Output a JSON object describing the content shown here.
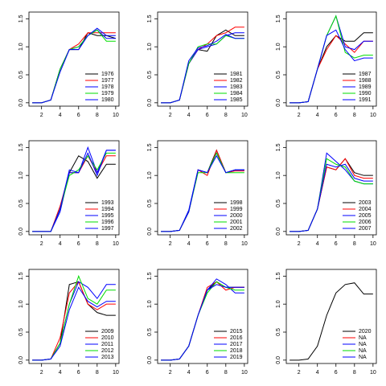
{
  "chart_data": [
    {
      "type": "line",
      "x": [
        1,
        2,
        3,
        4,
        5,
        6,
        7,
        8,
        9,
        10
      ],
      "xlim": [
        0.64,
        10.36
      ],
      "ylim": [
        -0.06,
        1.62
      ],
      "xticks": [
        2,
        4,
        6,
        8,
        10
      ],
      "yticks": [
        {
          "value": 0,
          "label": "0.0"
        },
        0.5,
        {
          "value": 1,
          "label": "1.0"
        },
        1.5
      ],
      "legend": "bottomright",
      "series": [
        {
          "name": "1976",
          "color": "#000000",
          "values": [
            0,
            0,
            0.05,
            0.6,
            0.95,
            0.95,
            1.25,
            1.2,
            1.2,
            1.15
          ]
        },
        {
          "name": "1977",
          "color": "#ff0000",
          "values": [
            0,
            0,
            0.05,
            0.6,
            0.95,
            1.05,
            1.25,
            1.25,
            1.25,
            1.25
          ]
        },
        {
          "name": "1978",
          "color": "#0000ff",
          "values": [
            0,
            0,
            0.05,
            0.6,
            0.95,
            1.0,
            1.2,
            1.3,
            1.15,
            1.15
          ]
        },
        {
          "name": "1979",
          "color": "#00dd00",
          "values": [
            0,
            0,
            0.05,
            0.6,
            0.95,
            1.0,
            1.2,
            1.3,
            1.1,
            1.1
          ]
        },
        {
          "name": "1980",
          "color": "#0000ff",
          "values": [
            0,
            0,
            0.05,
            0.55,
            0.95,
            0.95,
            1.2,
            1.33,
            1.2,
            1.2
          ]
        }
      ]
    },
    {
      "type": "line",
      "x": [
        1,
        2,
        3,
        4,
        5,
        6,
        7,
        8,
        9,
        10
      ],
      "xlim": [
        0.64,
        10.36
      ],
      "ylim": [
        -0.06,
        1.62
      ],
      "xticks": [
        2,
        4,
        6,
        8,
        10
      ],
      "yticks": [
        {
          "value": 0,
          "label": "0.0"
        },
        0.5,
        {
          "value": 1,
          "label": "1.0"
        },
        1.5
      ],
      "legend": "bottomright",
      "series": [
        {
          "name": "1981",
          "color": "#000000",
          "values": [
            0,
            0,
            0.05,
            0.7,
            0.95,
            0.92,
            1.2,
            1.3,
            1.2,
            1.2
          ]
        },
        {
          "name": "1982",
          "color": "#ff0000",
          "values": [
            0,
            0,
            0.05,
            0.7,
            0.95,
            1.05,
            1.2,
            1.25,
            1.35,
            1.35
          ]
        },
        {
          "name": "1983",
          "color": "#0000ff",
          "values": [
            0,
            0,
            0.05,
            0.7,
            0.95,
            1.0,
            1.05,
            1.2,
            1.25,
            1.25
          ]
        },
        {
          "name": "1984",
          "color": "#00dd00",
          "values": [
            0,
            0,
            0.05,
            0.7,
            1.0,
            1.05,
            1.05,
            1.2,
            1.15,
            1.15
          ]
        },
        {
          "name": "1985",
          "color": "#0000ff",
          "values": [
            0,
            0,
            0.05,
            0.75,
            0.98,
            1.02,
            1.1,
            1.22,
            1.15,
            1.15
          ]
        }
      ]
    },
    {
      "type": "line",
      "x": [
        1,
        2,
        3,
        4,
        5,
        6,
        7,
        8,
        9,
        10
      ],
      "xlim": [
        0.64,
        10.36
      ],
      "ylim": [
        -0.06,
        1.62
      ],
      "xticks": [
        2,
        4,
        6,
        8,
        10
      ],
      "yticks": [
        {
          "value": 0,
          "label": "0.0"
        },
        0.5,
        {
          "value": 1,
          "label": "1.0"
        },
        1.5
      ],
      "legend": "bottomright",
      "series": [
        {
          "name": "1987",
          "color": "#000000",
          "values": [
            0,
            0,
            0.02,
            0.6,
            1.0,
            1.2,
            1.1,
            1.1,
            1.25,
            1.25
          ]
        },
        {
          "name": "1988",
          "color": "#ff0000",
          "values": [
            0,
            0,
            0.02,
            0.6,
            0.95,
            1.2,
            1.05,
            0.9,
            1.1,
            1.1
          ]
        },
        {
          "name": "1989",
          "color": "#0000ff",
          "values": [
            0,
            0,
            0.02,
            0.6,
            1.2,
            1.55,
            1.0,
            0.95,
            1.1,
            1.1
          ]
        },
        {
          "name": "1990",
          "color": "#00dd00",
          "values": [
            0,
            0,
            0.02,
            0.6,
            1.2,
            1.55,
            0.9,
            0.8,
            0.85,
            0.85
          ]
        },
        {
          "name": "1991",
          "color": "#0000ff",
          "values": [
            0,
            0,
            0.02,
            0.6,
            1.2,
            1.3,
            0.95,
            0.75,
            0.8,
            0.8
          ]
        }
      ]
    },
    {
      "type": "line",
      "x": [
        1,
        2,
        3,
        4,
        5,
        6,
        7,
        8,
        9,
        10
      ],
      "xlim": [
        0.64,
        10.36
      ],
      "ylim": [
        -0.06,
        1.62
      ],
      "xticks": [
        2,
        4,
        6,
        8,
        10
      ],
      "yticks": [
        {
          "value": 0,
          "label": "0.0"
        },
        0.5,
        {
          "value": 1,
          "label": "1.0"
        },
        1.5
      ],
      "legend": "bottomright",
      "series": [
        {
          "name": "1993",
          "color": "#000000",
          "values": [
            0,
            0,
            0,
            0.4,
            1.05,
            1.35,
            1.25,
            0.95,
            1.2,
            1.2
          ]
        },
        {
          "name": "1994",
          "color": "#ff0000",
          "values": [
            0,
            0,
            0,
            0.45,
            1.05,
            1.05,
            1.35,
            1.05,
            1.35,
            1.35
          ]
        },
        {
          "name": "1995",
          "color": "#0000ff",
          "values": [
            0,
            0,
            0,
            0.35,
            1.05,
            1.05,
            1.5,
            1.05,
            1.45,
            1.45
          ]
        },
        {
          "name": "1996",
          "color": "#00dd00",
          "values": [
            0,
            0,
            0,
            0.4,
            1.0,
            1.1,
            1.35,
            1.1,
            1.4,
            1.4
          ]
        },
        {
          "name": "1997",
          "color": "#0000ff",
          "values": [
            0,
            0,
            0,
            0.4,
            1.1,
            1.05,
            1.4,
            1.0,
            1.45,
            1.45
          ]
        }
      ]
    },
    {
      "type": "line",
      "x": [
        1,
        2,
        3,
        4,
        5,
        6,
        7,
        8,
        9,
        10
      ],
      "xlim": [
        0.64,
        10.36
      ],
      "ylim": [
        -0.06,
        1.62
      ],
      "xticks": [
        2,
        4,
        6,
        8,
        10
      ],
      "yticks": [
        {
          "value": 0,
          "label": "0.0"
        },
        0.5,
        {
          "value": 1,
          "label": "1.0"
        },
        1.5
      ],
      "legend": "bottomright",
      "series": [
        {
          "name": "1998",
          "color": "#000000",
          "values": [
            0,
            0,
            0.02,
            0.35,
            1.1,
            1.05,
            1.45,
            1.05,
            1.1,
            1.1
          ]
        },
        {
          "name": "1999",
          "color": "#ff0000",
          "values": [
            0,
            0,
            0.02,
            0.35,
            1.1,
            1.0,
            1.45,
            1.05,
            1.08,
            1.08
          ]
        },
        {
          "name": "2000",
          "color": "#0000ff",
          "values": [
            0,
            0,
            0.02,
            0.38,
            1.1,
            1.05,
            1.4,
            1.05,
            1.1,
            1.1
          ]
        },
        {
          "name": "2001",
          "color": "#00dd00",
          "values": [
            0,
            0,
            0.02,
            0.35,
            1.05,
            1.05,
            1.4,
            1.05,
            1.05,
            1.05
          ]
        },
        {
          "name": "2002",
          "color": "#0000ff",
          "values": [
            0,
            0,
            0.02,
            0.35,
            1.1,
            1.05,
            1.35,
            1.05,
            1.1,
            1.1
          ]
        }
      ]
    },
    {
      "type": "line",
      "x": [
        1,
        2,
        3,
        4,
        5,
        6,
        7,
        8,
        9,
        10
      ],
      "xlim": [
        0.64,
        10.36
      ],
      "ylim": [
        -0.06,
        1.62
      ],
      "xticks": [
        2,
        4,
        6,
        8,
        10
      ],
      "yticks": [
        {
          "value": 0,
          "label": "0.0"
        },
        0.5,
        {
          "value": 1,
          "label": "1.0"
        },
        1.5
      ],
      "legend": "bottomright",
      "series": [
        {
          "name": "2003",
          "color": "#000000",
          "values": [
            0,
            0,
            0.02,
            0.4,
            1.15,
            1.1,
            1.3,
            1.05,
            1.0,
            1.0
          ]
        },
        {
          "name": "2004",
          "color": "#ff0000",
          "values": [
            0,
            0,
            0.02,
            0.4,
            1.15,
            1.1,
            1.3,
            1.0,
            0.95,
            0.95
          ]
        },
        {
          "name": "2005",
          "color": "#0000ff",
          "values": [
            0,
            0,
            0.02,
            0.4,
            1.4,
            1.25,
            1.1,
            0.9,
            0.85,
            0.85
          ]
        },
        {
          "name": "2006",
          "color": "#00dd00",
          "values": [
            0,
            0,
            0.02,
            0.4,
            1.3,
            1.2,
            1.15,
            0.9,
            0.85,
            0.85
          ]
        },
        {
          "name": "2007",
          "color": "#0000ff",
          "values": [
            0,
            0,
            0.02,
            0.4,
            1.2,
            1.15,
            1.2,
            0.95,
            0.9,
            0.9
          ]
        }
      ]
    },
    {
      "type": "line",
      "x": [
        1,
        2,
        3,
        4,
        5,
        6,
        7,
        8,
        9,
        10
      ],
      "xlim": [
        0.64,
        10.36
      ],
      "ylim": [
        -0.06,
        1.62
      ],
      "xticks": [
        2,
        4,
        6,
        8,
        10
      ],
      "yticks": [
        {
          "value": 0,
          "label": "0.0"
        },
        0.5,
        {
          "value": 1,
          "label": "1.0"
        },
        1.5
      ],
      "legend": "bottomright",
      "series": [
        {
          "name": "2009",
          "color": "#000000",
          "values": [
            0,
            0,
            0.02,
            0.3,
            1.35,
            1.4,
            1.0,
            0.85,
            0.8,
            0.8
          ]
        },
        {
          "name": "2010",
          "color": "#ff0000",
          "values": [
            0,
            0,
            0.02,
            0.4,
            1.2,
            1.4,
            1.0,
            0.9,
            1.0,
            1.0
          ]
        },
        {
          "name": "2011",
          "color": "#0000ff",
          "values": [
            0,
            0,
            0.02,
            0.3,
            1.0,
            1.4,
            1.3,
            1.1,
            1.35,
            1.35
          ]
        },
        {
          "name": "2012",
          "color": "#00dd00",
          "values": [
            0,
            0,
            0.02,
            0.3,
            1.0,
            1.5,
            1.1,
            1.0,
            1.25,
            1.25
          ]
        },
        {
          "name": "2013",
          "color": "#0000ff",
          "values": [
            0,
            0,
            0.02,
            0.25,
            0.9,
            1.3,
            1.05,
            0.95,
            1.05,
            1.05
          ]
        }
      ]
    },
    {
      "type": "line",
      "x": [
        1,
        2,
        3,
        4,
        5,
        6,
        7,
        8,
        9,
        10
      ],
      "xlim": [
        0.64,
        10.36
      ],
      "ylim": [
        -0.06,
        1.62
      ],
      "xticks": [
        2,
        4,
        6,
        8,
        10
      ],
      "yticks": [
        {
          "value": 0,
          "label": "0.0"
        },
        0.5,
        {
          "value": 1,
          "label": "1.0"
        },
        1.5
      ],
      "legend": "bottomright",
      "series": [
        {
          "name": "2015",
          "color": "#000000",
          "values": [
            0,
            0,
            0.02,
            0.25,
            0.8,
            1.25,
            1.4,
            1.3,
            1.3,
            1.3
          ]
        },
        {
          "name": "2016",
          "color": "#ff0000",
          "values": [
            0,
            0,
            0.02,
            0.25,
            0.8,
            1.3,
            1.4,
            1.25,
            1.3,
            1.3
          ]
        },
        {
          "name": "2017",
          "color": "#0000ff",
          "values": [
            0,
            0,
            0.02,
            0.25,
            0.8,
            1.25,
            1.45,
            1.35,
            1.2,
            1.2
          ]
        },
        {
          "name": "2018",
          "color": "#00dd00",
          "values": [
            0,
            0,
            0.02,
            0.25,
            0.8,
            1.2,
            1.4,
            1.3,
            1.25,
            1.25
          ]
        },
        {
          "name": "2019",
          "color": "#0000ff",
          "values": [
            0,
            0,
            0.02,
            0.25,
            0.8,
            1.25,
            1.35,
            1.3,
            1.3,
            1.3
          ]
        }
      ]
    },
    {
      "type": "line",
      "x": [
        1,
        2,
        3,
        4,
        5,
        6,
        7,
        8,
        9,
        10
      ],
      "xlim": [
        0.64,
        10.36
      ],
      "ylim": [
        -0.06,
        1.62
      ],
      "xticks": [
        2,
        4,
        6,
        8,
        10
      ],
      "yticks": [
        {
          "value": 0,
          "label": "0.0"
        },
        0.5,
        {
          "value": 1,
          "label": "1.0"
        },
        1.5
      ],
      "legend": "bottomright",
      "series": [
        {
          "name": "2020",
          "color": "#000000",
          "values": [
            0,
            0,
            0.02,
            0.25,
            0.8,
            1.2,
            1.35,
            1.38,
            1.18,
            1.18
          ]
        },
        {
          "name": "NA",
          "color": "#ff0000",
          "values": [
            null,
            null,
            null,
            null,
            null,
            null,
            null,
            null,
            null,
            null
          ]
        },
        {
          "name": "NA",
          "color": "#0000ff",
          "values": [
            null,
            null,
            null,
            null,
            null,
            null,
            null,
            null,
            null,
            null
          ]
        },
        {
          "name": "NA",
          "color": "#00dd00",
          "values": [
            null,
            null,
            null,
            null,
            null,
            null,
            null,
            null,
            null,
            null
          ]
        },
        {
          "name": "NA",
          "color": "#0000ff",
          "values": [
            null,
            null,
            null,
            null,
            null,
            null,
            null,
            null,
            null,
            null
          ]
        }
      ]
    }
  ]
}
